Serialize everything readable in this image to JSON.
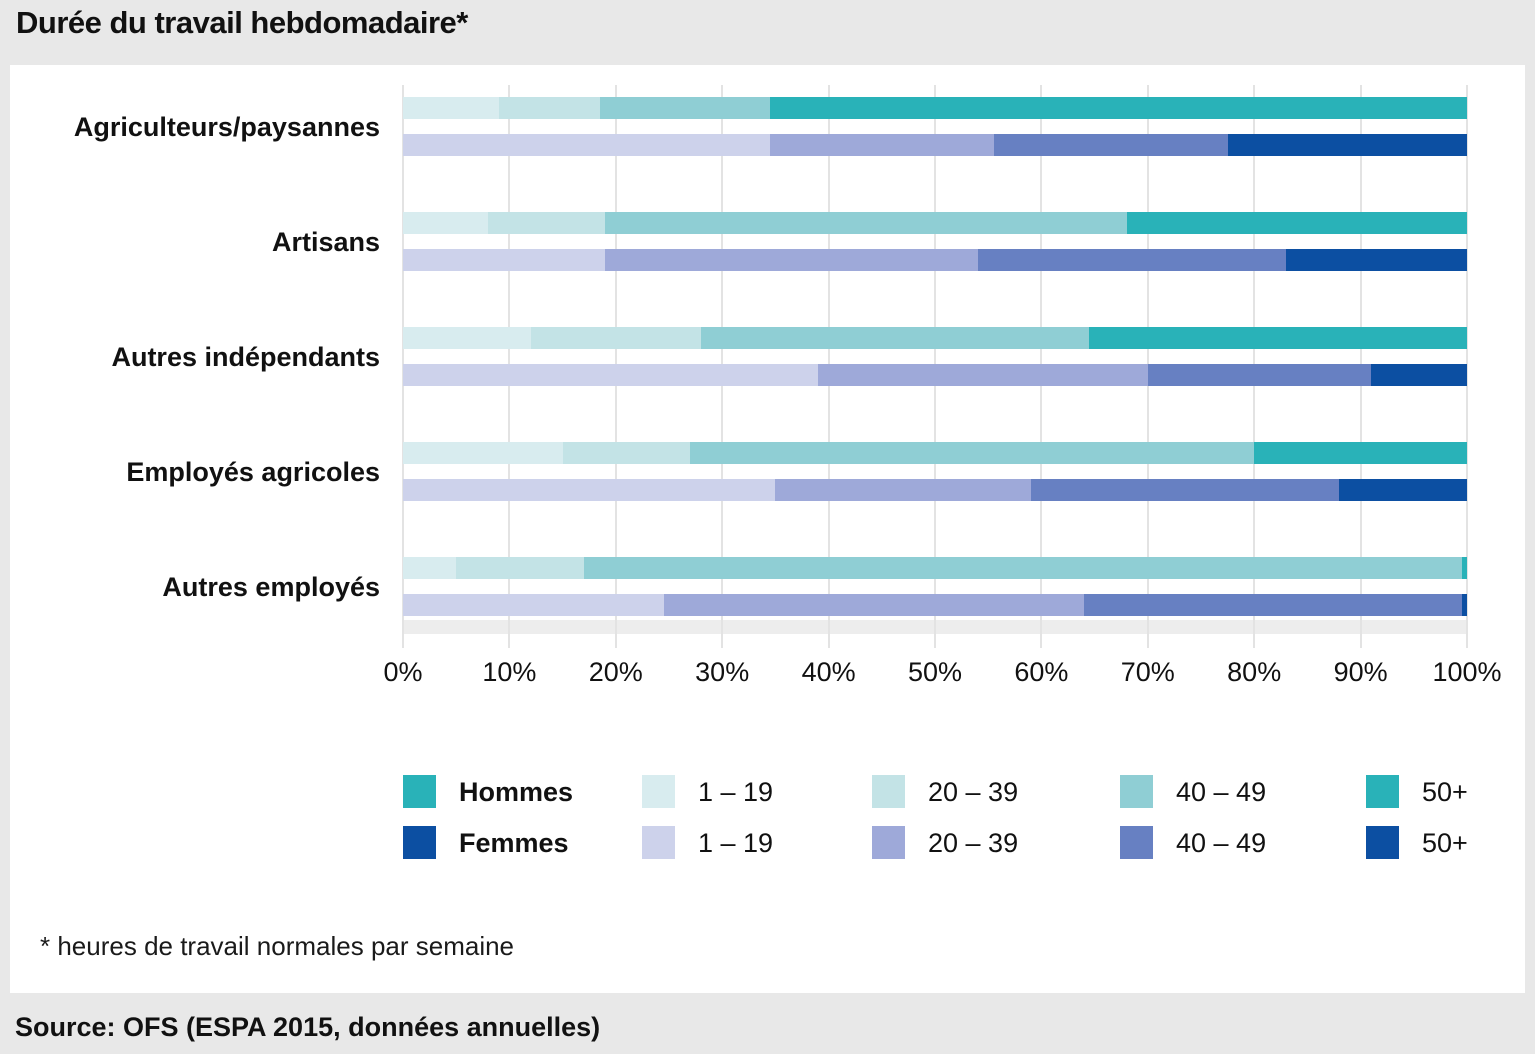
{
  "title": "Durée du travail hebdomadaire*",
  "footnote": "* heures de travail normales par semaine",
  "source": "Source: OFS (ESPA 2015, données annuelles)",
  "chart_data": {
    "type": "bar",
    "stacked": true,
    "orientation": "horizontal",
    "unit": "percent",
    "x_axis": {
      "min": 0,
      "max": 100,
      "ticks": [
        "0%",
        "10%",
        "20%",
        "30%",
        "40%",
        "50%",
        "60%",
        "70%",
        "80%",
        "90%",
        "100%"
      ],
      "grid": true
    },
    "genders": [
      "Hommes",
      "Femmes"
    ],
    "bins": [
      "1 – 19",
      "20 – 39",
      "40 – 49",
      "50+"
    ],
    "colors": {
      "hommes": [
        "#d8ecef",
        "#c3e3e6",
        "#8fced4",
        "#29b2b8"
      ],
      "femmes": [
        "#cdd2eb",
        "#9ea9d9",
        "#6780c2",
        "#0c4fa2"
      ]
    },
    "rows": [
      {
        "category": "Agriculteurs/paysannes",
        "hommes": [
          9,
          9.5,
          16,
          65.5
        ],
        "femmes": [
          34.5,
          21,
          22,
          22.5
        ]
      },
      {
        "category": "Artisans",
        "hommes": [
          8,
          11,
          49,
          32
        ],
        "femmes": [
          19,
          35,
          29,
          17
        ]
      },
      {
        "category": "Autres indépendants",
        "hommes": [
          12,
          16,
          36.5,
          35.5
        ],
        "femmes": [
          39,
          31,
          21,
          9
        ]
      },
      {
        "category": "Employés agricoles",
        "hommes": [
          15,
          12,
          53,
          20
        ],
        "femmes": [
          35,
          24,
          29,
          12
        ]
      },
      {
        "category": "Autres employés",
        "hommes": [
          5,
          12,
          82.5,
          0.5
        ],
        "femmes": [
          24.5,
          39.5,
          35.5,
          0.5
        ]
      }
    ],
    "legend_position": "bottom"
  }
}
